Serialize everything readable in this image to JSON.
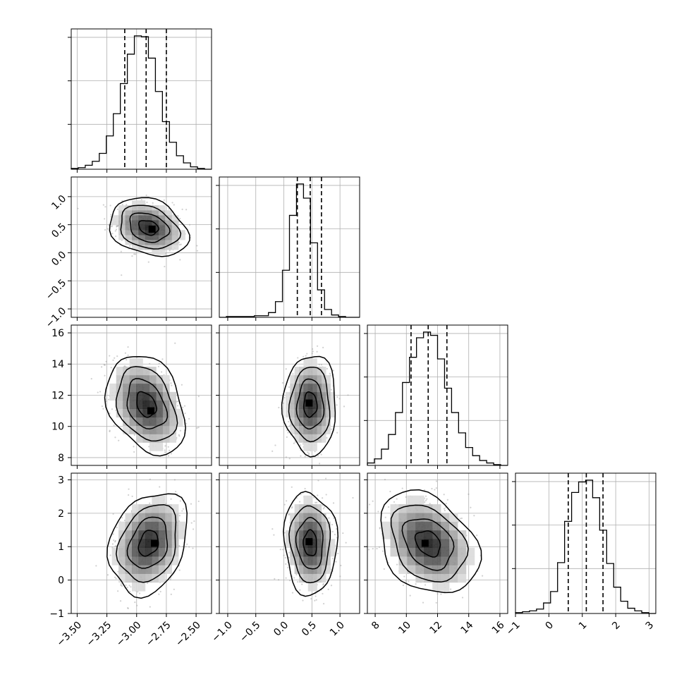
{
  "chart_data": {
    "type": "corner",
    "parameters": [
      {
        "ticks": [
          -3.5,
          -3.25,
          -3.0,
          -2.75,
          -2.5
        ],
        "tick_labels": [
          "−3.50",
          "−3.25",
          "−3.00",
          "−2.75",
          "−2.50"
        ],
        "range": [
          -3.55,
          -2.37
        ],
        "quantiles": [
          -3.1,
          -2.92,
          -2.75
        ],
        "hist_counts": [
          1,
          2,
          5,
          10,
          20,
          42,
          70,
          108,
          145,
          168,
          167,
          140,
          98,
          60,
          34,
          17,
          8,
          3,
          1,
          0
        ],
        "hist_max": 168
      },
      {
        "ticks": [
          -1.0,
          -0.5,
          0.0,
          0.5,
          1.0
        ],
        "tick_labels": [
          "−1.0",
          "−0.5",
          "0.0",
          "0.5",
          "1.0"
        ],
        "range": [
          -1.15,
          1.35
        ],
        "quantiles": [
          0.24,
          0.47,
          0.67
        ],
        "hist_counts": [
          0,
          1,
          1,
          1,
          1,
          2,
          2,
          6,
          20,
          60,
          130,
          170,
          152,
          95,
          35,
          10,
          3,
          1,
          0,
          0
        ],
        "hist_max": 170
      },
      {
        "ticks": [
          8,
          10,
          12,
          14,
          16
        ],
        "tick_labels": [
          "8",
          "10",
          "12",
          "14",
          "16"
        ],
        "range": [
          7.5,
          16.5
        ],
        "quantiles": [
          10.3,
          11.4,
          12.6
        ],
        "hist_counts": [
          3,
          8,
          20,
          38,
          65,
          102,
          133,
          157,
          164,
          160,
          131,
          95,
          65,
          40,
          22,
          12,
          6,
          3,
          1,
          0
        ],
        "hist_max": 164
      },
      {
        "ticks": [
          -1,
          0,
          1,
          2,
          3
        ],
        "tick_labels": [
          "−1",
          "0",
          "1",
          "2",
          "3"
        ],
        "range": [
          -1.0,
          3.2
        ],
        "quantiles": [
          0.58,
          1.12,
          1.62
        ],
        "hist_counts": [
          1,
          2,
          3,
          5,
          12,
          25,
          58,
          105,
          138,
          150,
          152,
          132,
          95,
          57,
          30,
          14,
          6,
          3,
          1,
          0
        ],
        "hist_max": 152
      }
    ],
    "pairs": [
      {
        "row": 1,
        "col": 0,
        "mean": [
          -2.9,
          0.45
        ],
        "sd": [
          0.14,
          0.22
        ],
        "rho": -0.25,
        "mode": [
          -2.87,
          0.42
        ]
      },
      {
        "row": 2,
        "col": 0,
        "mean": [
          -2.92,
          11.4
        ],
        "sd": [
          0.14,
          1.35
        ],
        "rho": -0.3,
        "mode": [
          -2.88,
          11.0
        ]
      },
      {
        "row": 2,
        "col": 1,
        "mean": [
          0.47,
          11.4
        ],
        "sd": [
          0.2,
          1.35
        ],
        "rho": 0.0,
        "mode": [
          0.45,
          11.5
        ]
      },
      {
        "row": 3,
        "col": 0,
        "mean": [
          -2.9,
          1.1
        ],
        "sd": [
          0.14,
          0.65
        ],
        "rho": 0.25,
        "mode": [
          -2.85,
          1.1
        ]
      },
      {
        "row": 3,
        "col": 1,
        "mean": [
          0.47,
          1.1
        ],
        "sd": [
          0.2,
          0.65
        ],
        "rho": -0.05,
        "mode": [
          0.45,
          1.15
        ]
      },
      {
        "row": 3,
        "col": 2,
        "mean": [
          11.4,
          1.1
        ],
        "sd": [
          1.35,
          0.65
        ],
        "rho": -0.3,
        "mode": [
          11.2,
          1.1
        ]
      }
    ],
    "contour_levels_sigma": [
      0.5,
      1.0,
      1.5,
      2.0
    ],
    "grid": true,
    "quantile_line_style": "dashed"
  }
}
